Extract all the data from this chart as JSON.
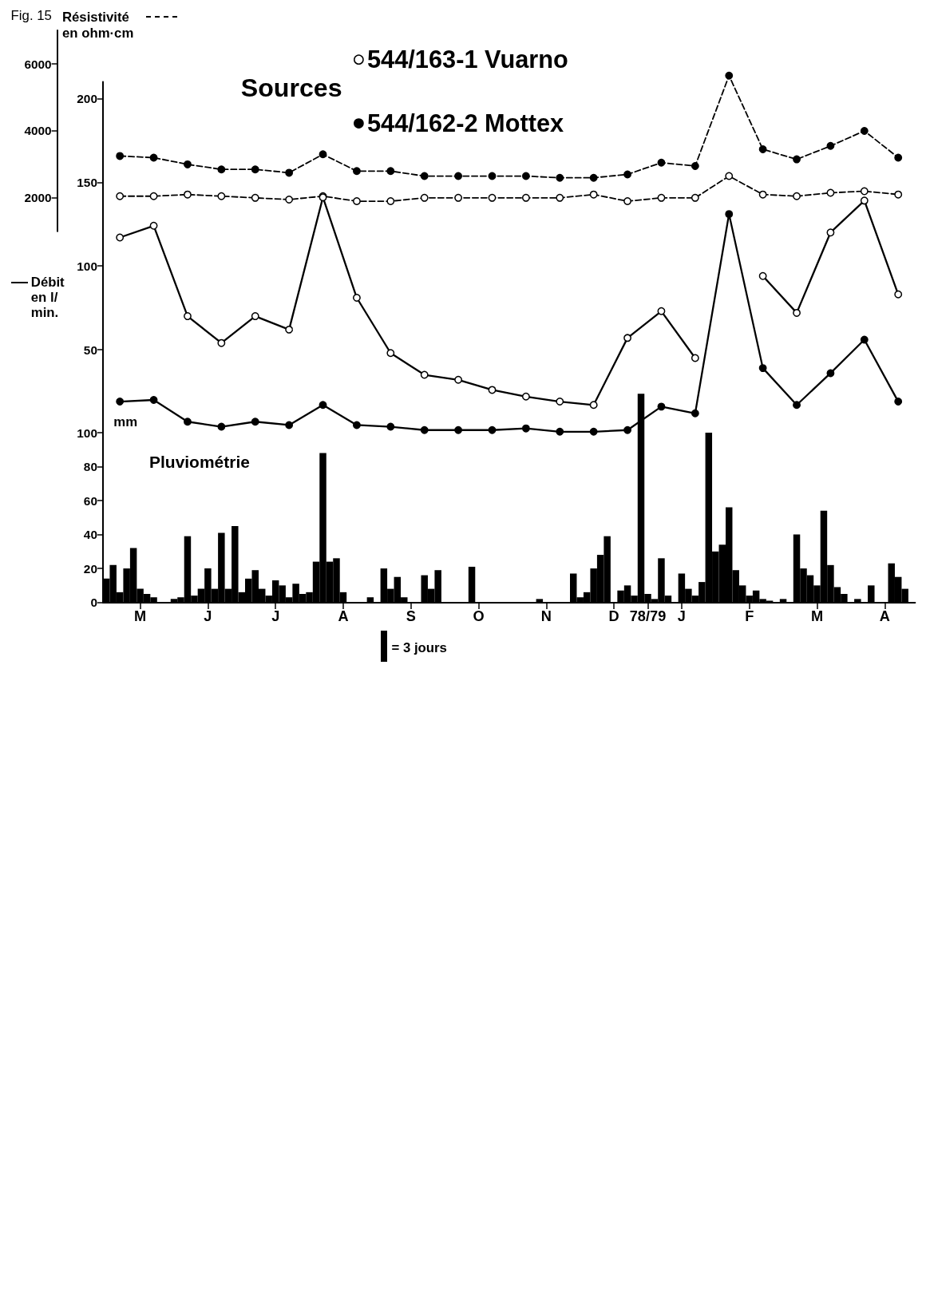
{
  "chart_data": [
    {
      "type": "line",
      "title": "Fig. 15",
      "ylabel": "Résistivité en ohm·cm",
      "categories": [
        null,
        null,
        null,
        null,
        null,
        null,
        null,
        null,
        null,
        null,
        null,
        null,
        null,
        null,
        null,
        null,
        null,
        null,
        null,
        null,
        null,
        null,
        null,
        null
      ],
      "ylim": [
        1000,
        7000
      ],
      "yticks": [
        2000,
        4000,
        6000
      ],
      "tick_labels": "y",
      "line_style": "dashed",
      "marker": "circle",
      "series": [
        {
          "color": "#ffffff",
          "values": [
            2050,
            2050,
            2100,
            2050,
            2000,
            1950,
            2050,
            1900,
            1900,
            2000,
            2000,
            2000,
            2000,
            2000,
            2100,
            1900,
            2000,
            2000,
            2650,
            2100,
            2050,
            2150,
            2200,
            2100
          ]
        },
        {
          "color": "#000000",
          "values": [
            3250,
            3200,
            3000,
            2850,
            2850,
            2750,
            3300,
            2800,
            2800,
            2650,
            2650,
            2650,
            2650,
            2600,
            2600,
            2700,
            3050,
            2950,
            5650,
            3450,
            3150,
            3550,
            4000,
            3200
          ]
        }
      ]
    },
    {
      "type": "line",
      "legend_title": "Sources",
      "legend": "top",
      "ylabel": "Débit en l/min.",
      "categories": [
        null,
        null,
        null,
        null,
        null,
        null,
        null,
        null,
        null,
        null,
        null,
        null,
        null,
        null,
        null,
        null,
        null,
        null,
        null,
        null,
        null,
        null,
        null,
        null
      ],
      "ylim": [
        0,
        210
      ],
      "yticks": [
        50,
        100,
        150,
        200
      ],
      "tick_labels": "y",
      "line_style": "solid",
      "marker": "circle",
      "series": [
        {
          "name": "544/163-1 Vuarno",
          "color": "#ffffff",
          "values": [
            117,
            124,
            70,
            54,
            70,
            62,
            141,
            81,
            48,
            35,
            32,
            26,
            22,
            19,
            17,
            57,
            73,
            45,
            null,
            94,
            72,
            120,
            139,
            83
          ]
        },
        {
          "name": "544/162-2 Mottex",
          "color": "#000000",
          "values": [
            19,
            20,
            7,
            4,
            7,
            5,
            17,
            5,
            4,
            2,
            2,
            2,
            3,
            1,
            1,
            2,
            16,
            12,
            131,
            39,
            17,
            36,
            56,
            19
          ]
        }
      ]
    },
    {
      "type": "bar",
      "ylabel": "mm",
      "annotations": [
        "= 3 jours"
      ],
      "categories": [
        null,
        null,
        null,
        null,
        null,
        "M",
        null,
        null,
        null,
        null,
        null,
        null,
        null,
        null,
        null,
        "J",
        null,
        null,
        null,
        null,
        null,
        null,
        null,
        null,
        null,
        "J",
        null,
        null,
        null,
        null,
        null,
        null,
        null,
        null,
        null,
        "A",
        null,
        null,
        null,
        null,
        null,
        null,
        null,
        null,
        null,
        "S",
        null,
        null,
        null,
        null,
        null,
        null,
        null,
        null,
        null,
        "O",
        null,
        null,
        null,
        null,
        null,
        null,
        null,
        null,
        null,
        "N",
        null,
        null,
        null,
        null,
        null,
        null,
        null,
        null,
        null,
        "D",
        null,
        null,
        null,
        null,
        "78/79",
        null,
        null,
        null,
        null,
        "J",
        null,
        null,
        null,
        null,
        null,
        null,
        null,
        null,
        null,
        "F",
        null,
        null,
        null,
        null,
        null,
        null,
        null,
        null,
        null,
        "M",
        null,
        null,
        null,
        null,
        null,
        null,
        null,
        null,
        null,
        "A",
        null,
        null,
        null,
        null
      ],
      "ylim": [
        0,
        125
      ],
      "yticks": [
        0,
        20,
        40,
        60,
        80,
        100
      ],
      "series": [
        {
          "name": "Pluviométrie",
          "color": "#000000",
          "values": [
            14,
            22,
            6,
            20,
            32,
            8,
            5,
            3,
            0,
            0,
            2,
            3,
            39,
            4,
            8,
            20,
            8,
            41,
            8,
            45,
            6,
            14,
            19,
            8,
            4,
            13,
            10,
            3,
            11,
            5,
            6,
            24,
            88,
            24,
            26,
            6,
            0,
            0,
            0,
            3,
            0,
            20,
            8,
            15,
            3,
            0,
            0,
            16,
            8,
            19,
            0,
            0,
            0,
            0,
            21,
            0,
            0,
            0,
            0,
            0,
            0,
            0,
            0,
            0,
            2,
            0,
            0,
            0,
            0,
            17,
            3,
            6,
            20,
            28,
            39,
            0,
            7,
            10,
            4,
            123,
            5,
            2,
            26,
            4,
            0,
            17,
            8,
            4,
            12,
            100,
            30,
            34,
            56,
            19,
            10,
            4,
            7,
            2,
            1,
            0,
            2,
            0,
            40,
            20,
            16,
            10,
            54,
            22,
            9,
            5,
            0,
            2,
            0,
            10,
            0,
            0,
            23,
            15,
            8,
            0
          ]
        }
      ]
    }
  ]
}
